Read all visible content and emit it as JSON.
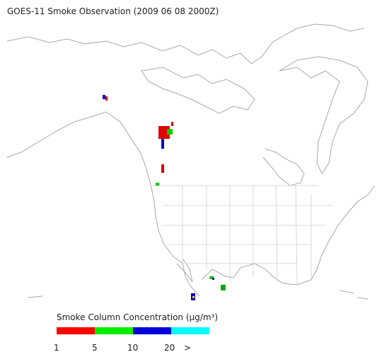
{
  "title": "GOES-11 Smoke Observation (2009 06 08  2000Z)",
  "legend": {
    "title": "Smoke Column Concentration (μg/m³)",
    "colors": [
      "#ff0000",
      "#00ee00",
      "#0000dd",
      "#00ffff"
    ],
    "labels": [
      "1",
      "5",
      "10",
      "20",
      ">"
    ]
  }
}
